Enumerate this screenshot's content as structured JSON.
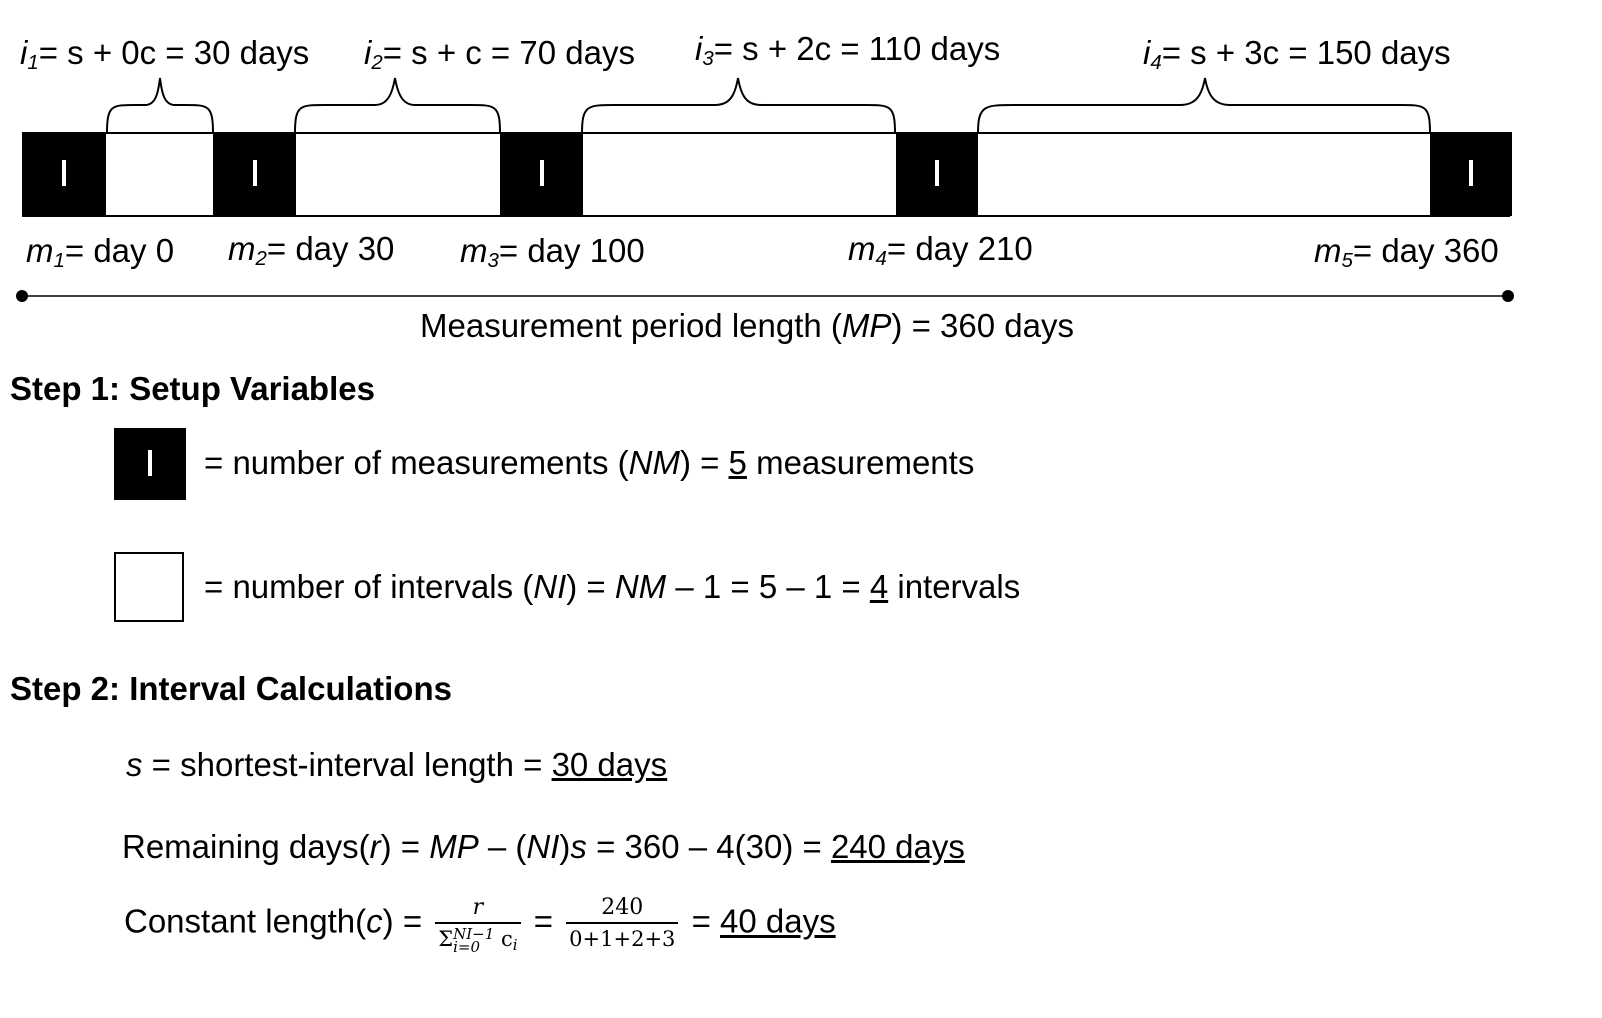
{
  "timeline": {
    "interval_labels": [
      {
        "var": "i",
        "sub": "1",
        "expr": "= s + 0c = 30 days"
      },
      {
        "var": "i",
        "sub": "2",
        "expr": "= s + c = 70 days"
      },
      {
        "var": "i",
        "sub": "3",
        "expr": "= s + 2c = 110 days"
      },
      {
        "var": "i",
        "sub": "4",
        "expr": "= s + 3c = 150 days"
      }
    ],
    "measurement_labels": [
      {
        "var": "m",
        "sub": "1",
        "text": "= day 0"
      },
      {
        "var": "m",
        "sub": "2",
        "text": "= day 30"
      },
      {
        "var": "m",
        "sub": "3",
        "text": "= day 100"
      },
      {
        "var": "m",
        "sub": "4",
        "text": "= day 210"
      },
      {
        "var": "m",
        "sub": "5",
        "text": "= day 360"
      }
    ],
    "period_text_before": "Measurement period length (",
    "period_var": "MP",
    "period_text_after": ") = 360 days"
  },
  "step1": {
    "title": "Step 1: Setup Variables",
    "nm_text": "= number of measurements (",
    "nm_var": "NM",
    "nm_mid": ") = ",
    "nm_value": "5",
    "nm_unit": " measurements",
    "ni_text": "= number of intervals (",
    "ni_var": "NI",
    "ni_mid1": ") = ",
    "ni_var2": "NM",
    "ni_mid2": " – 1 = 5 – 1 = ",
    "ni_value": "4",
    "ni_unit": " intervals"
  },
  "step2": {
    "title": "Step 2: Interval Calculations",
    "s_var": "s",
    "s_text": " = shortest-interval length = ",
    "s_value": "30 days",
    "r_text1": "Remaining days(",
    "r_var": "r",
    "r_text2": ") = ",
    "r_mp": "MP",
    "r_text3": " – (",
    "r_ni": "NI",
    "r_text4": ")",
    "r_s": "s",
    "r_text5": " = 360 – 4(30) = ",
    "r_value": "240 days",
    "c_text1": "Constant length(",
    "c_var": "c",
    "c_text2": ") = ",
    "frac1_num": "r",
    "frac1_den_sigma": "Σ",
    "frac1_den_sup": "NI−1",
    "frac1_den_sub": "i=0",
    "frac1_den_rest": " c",
    "frac1_den_rest_sub": "i",
    "frac2_num": "240",
    "frac2_den": "0+1+2+3",
    "eq": "=",
    "c_value": "40 days"
  }
}
